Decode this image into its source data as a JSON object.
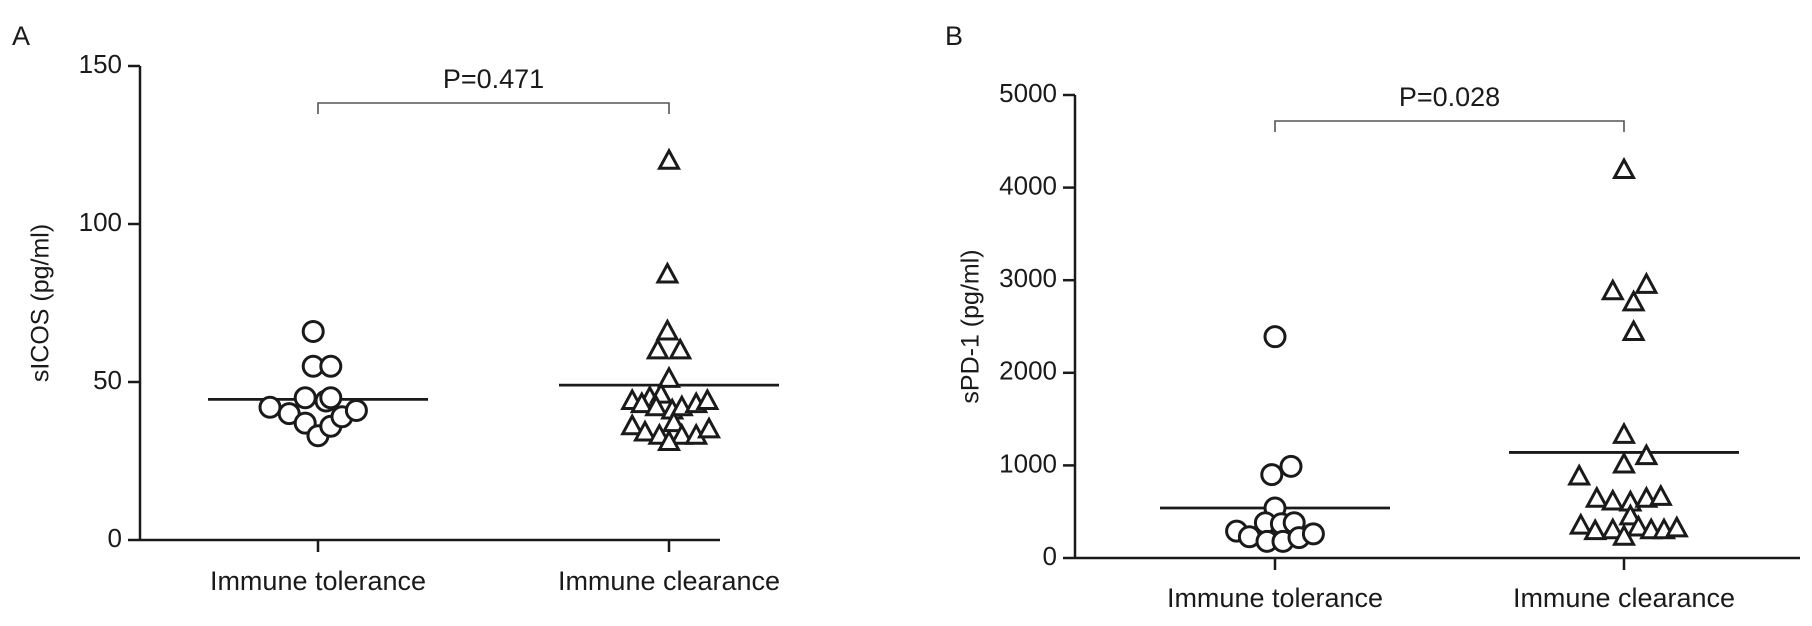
{
  "chart_data": [
    {
      "type": "scatter",
      "panel_label": "A",
      "ylabel": "sICOS (pg/ml)",
      "ylim": [
        0,
        150
      ],
      "yticks": [
        0,
        50,
        100,
        150
      ],
      "categories": [
        "Immune tolerance",
        "Immune clearance"
      ],
      "annotation": "P=0.471",
      "series": [
        {
          "category": "Immune tolerance",
          "marker": "circle",
          "mean": 44.5,
          "points": [
            {
              "x": -0.3,
              "y": 42
            },
            {
              "x": -0.18,
              "y": 40
            },
            {
              "x": -0.08,
              "y": 37
            },
            {
              "x": -0.08,
              "y": 45
            },
            {
              "x": -0.03,
              "y": 55
            },
            {
              "x": -0.03,
              "y": 66
            },
            {
              "x": 0.0,
              "y": 33
            },
            {
              "x": 0.05,
              "y": 44
            },
            {
              "x": 0.08,
              "y": 36
            },
            {
              "x": 0.08,
              "y": 55
            },
            {
              "x": 0.08,
              "y": 45
            },
            {
              "x": 0.15,
              "y": 39
            },
            {
              "x": 0.24,
              "y": 41
            }
          ]
        },
        {
          "category": "Immune clearance",
          "marker": "triangle",
          "mean": 49,
          "points": [
            {
              "x": 0.0,
              "y": 120
            },
            {
              "x": -0.01,
              "y": 84
            },
            {
              "x": -0.01,
              "y": 66
            },
            {
              "x": -0.07,
              "y": 60
            },
            {
              "x": 0.07,
              "y": 60
            },
            {
              "x": 0.0,
              "y": 51
            },
            {
              "x": -0.12,
              "y": 45
            },
            {
              "x": -0.05,
              "y": 46
            },
            {
              "x": -0.23,
              "y": 44
            },
            {
              "x": -0.17,
              "y": 43
            },
            {
              "x": -0.08,
              "y": 42
            },
            {
              "x": 0.02,
              "y": 41
            },
            {
              "x": 0.08,
              "y": 42
            },
            {
              "x": 0.17,
              "y": 43
            },
            {
              "x": 0.24,
              "y": 44
            },
            {
              "x": -0.23,
              "y": 36
            },
            {
              "x": -0.15,
              "y": 34
            },
            {
              "x": -0.06,
              "y": 33
            },
            {
              "x": 0.03,
              "y": 37
            },
            {
              "x": 0.08,
              "y": 33
            },
            {
              "x": 0.17,
              "y": 33
            },
            {
              "x": 0.25,
              "y": 35
            },
            {
              "x": 0.0,
              "y": 31
            }
          ]
        }
      ]
    },
    {
      "type": "scatter",
      "panel_label": "B",
      "ylabel": "sPD-1 (pg/ml)",
      "ylim": [
        0,
        5000
      ],
      "yticks": [
        0,
        1000,
        2000,
        3000,
        4000,
        5000
      ],
      "categories": [
        "Immune tolerance",
        "Immune clearance"
      ],
      "annotation": "P=0.028",
      "series": [
        {
          "category": "Immune tolerance",
          "marker": "circle",
          "mean": 540,
          "points": [
            {
              "x": 0.0,
              "y": 2390
            },
            {
              "x": 0.1,
              "y": 990
            },
            {
              "x": -0.02,
              "y": 900
            },
            {
              "x": 0.0,
              "y": 540
            },
            {
              "x": -0.06,
              "y": 380
            },
            {
              "x": 0.04,
              "y": 370
            },
            {
              "x": 0.12,
              "y": 380
            },
            {
              "x": -0.24,
              "y": 290
            },
            {
              "x": -0.16,
              "y": 230
            },
            {
              "x": -0.05,
              "y": 180
            },
            {
              "x": 0.05,
              "y": 180
            },
            {
              "x": 0.15,
              "y": 220
            },
            {
              "x": 0.24,
              "y": 260
            }
          ]
        },
        {
          "category": "Immune clearance",
          "marker": "triangle",
          "mean": 1140,
          "points": [
            {
              "x": 0.0,
              "y": 4190
            },
            {
              "x": -0.07,
              "y": 2880
            },
            {
              "x": 0.14,
              "y": 2950
            },
            {
              "x": 0.06,
              "y": 2760
            },
            {
              "x": 0.06,
              "y": 2440
            },
            {
              "x": 0.0,
              "y": 1330
            },
            {
              "x": 0.14,
              "y": 1100
            },
            {
              "x": 0.0,
              "y": 1010
            },
            {
              "x": -0.28,
              "y": 880
            },
            {
              "x": -0.17,
              "y": 640
            },
            {
              "x": -0.07,
              "y": 610
            },
            {
              "x": 0.04,
              "y": 600
            },
            {
              "x": 0.14,
              "y": 640
            },
            {
              "x": 0.23,
              "y": 660
            },
            {
              "x": -0.27,
              "y": 350
            },
            {
              "x": -0.18,
              "y": 290
            },
            {
              "x": -0.07,
              "y": 300
            },
            {
              "x": 0.04,
              "y": 450
            },
            {
              "x": 0.09,
              "y": 330
            },
            {
              "x": 0.17,
              "y": 300
            },
            {
              "x": 0.25,
              "y": 300
            },
            {
              "x": 0.33,
              "y": 320
            },
            {
              "x": 0.0,
              "y": 230
            }
          ]
        }
      ]
    }
  ]
}
